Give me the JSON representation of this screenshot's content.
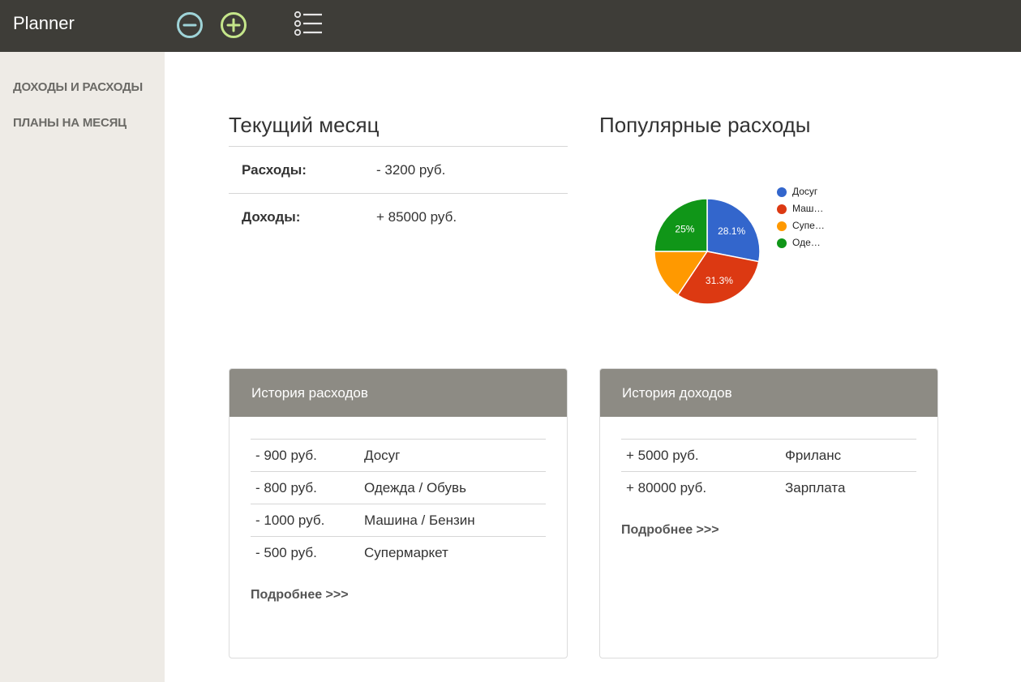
{
  "app": {
    "title": "Planner"
  },
  "toolbar": {
    "icons": [
      "minus-circle-icon",
      "plus-circle-icon",
      "list-icon"
    ],
    "minus_color": "#9fd4d8",
    "plus_color": "#c5e68a",
    "list_color": "#e6e6e6"
  },
  "sidebar": {
    "items": [
      {
        "label": "ДОХОДЫ И РАСХОДЫ"
      },
      {
        "label": "ПЛАНЫ НА МЕСЯЦ"
      }
    ]
  },
  "current_month": {
    "title": "Текущий месяц",
    "rows": [
      {
        "label": "Расходы:",
        "value": "- 3200 руб."
      },
      {
        "label": "Доходы:",
        "value": "+ 85000 руб."
      }
    ]
  },
  "popular": {
    "title": "Популярные расходы"
  },
  "chart_data": {
    "type": "pie",
    "title": "",
    "slices": [
      {
        "label": "Досуг",
        "legend": "Досуг",
        "value": 28.1,
        "display": "28.1%",
        "color": "#3366cc"
      },
      {
        "label": "Машина / Бензин",
        "legend": "Маш…",
        "value": 31.3,
        "display": "31.3%",
        "color": "#dc3912"
      },
      {
        "label": "Супермаркет",
        "legend": "Супе…",
        "value": 15.6,
        "display": "",
        "color": "#ff9900"
      },
      {
        "label": "Одежда / Обувь",
        "legend": "Оде…",
        "value": 25.0,
        "display": "25%",
        "color": "#109618"
      }
    ],
    "legend_position": "right"
  },
  "expense_history": {
    "title": "История расходов",
    "rows": [
      {
        "amount": "- 900 руб.",
        "category": "Досуг"
      },
      {
        "amount": "- 800 руб.",
        "category": "Одежда / Обувь"
      },
      {
        "amount": "- 1000 руб.",
        "category": "Машина / Бензин"
      },
      {
        "amount": "- 500 руб.",
        "category": "Супермаркет"
      }
    ],
    "more": "Подробнее >>>"
  },
  "income_history": {
    "title": "История доходов",
    "rows": [
      {
        "amount": "+ 5000 руб.",
        "category": "Фриланс"
      },
      {
        "amount": "+ 80000 руб.",
        "category": "Зарплата"
      }
    ],
    "more": "Подробнее >>>"
  }
}
